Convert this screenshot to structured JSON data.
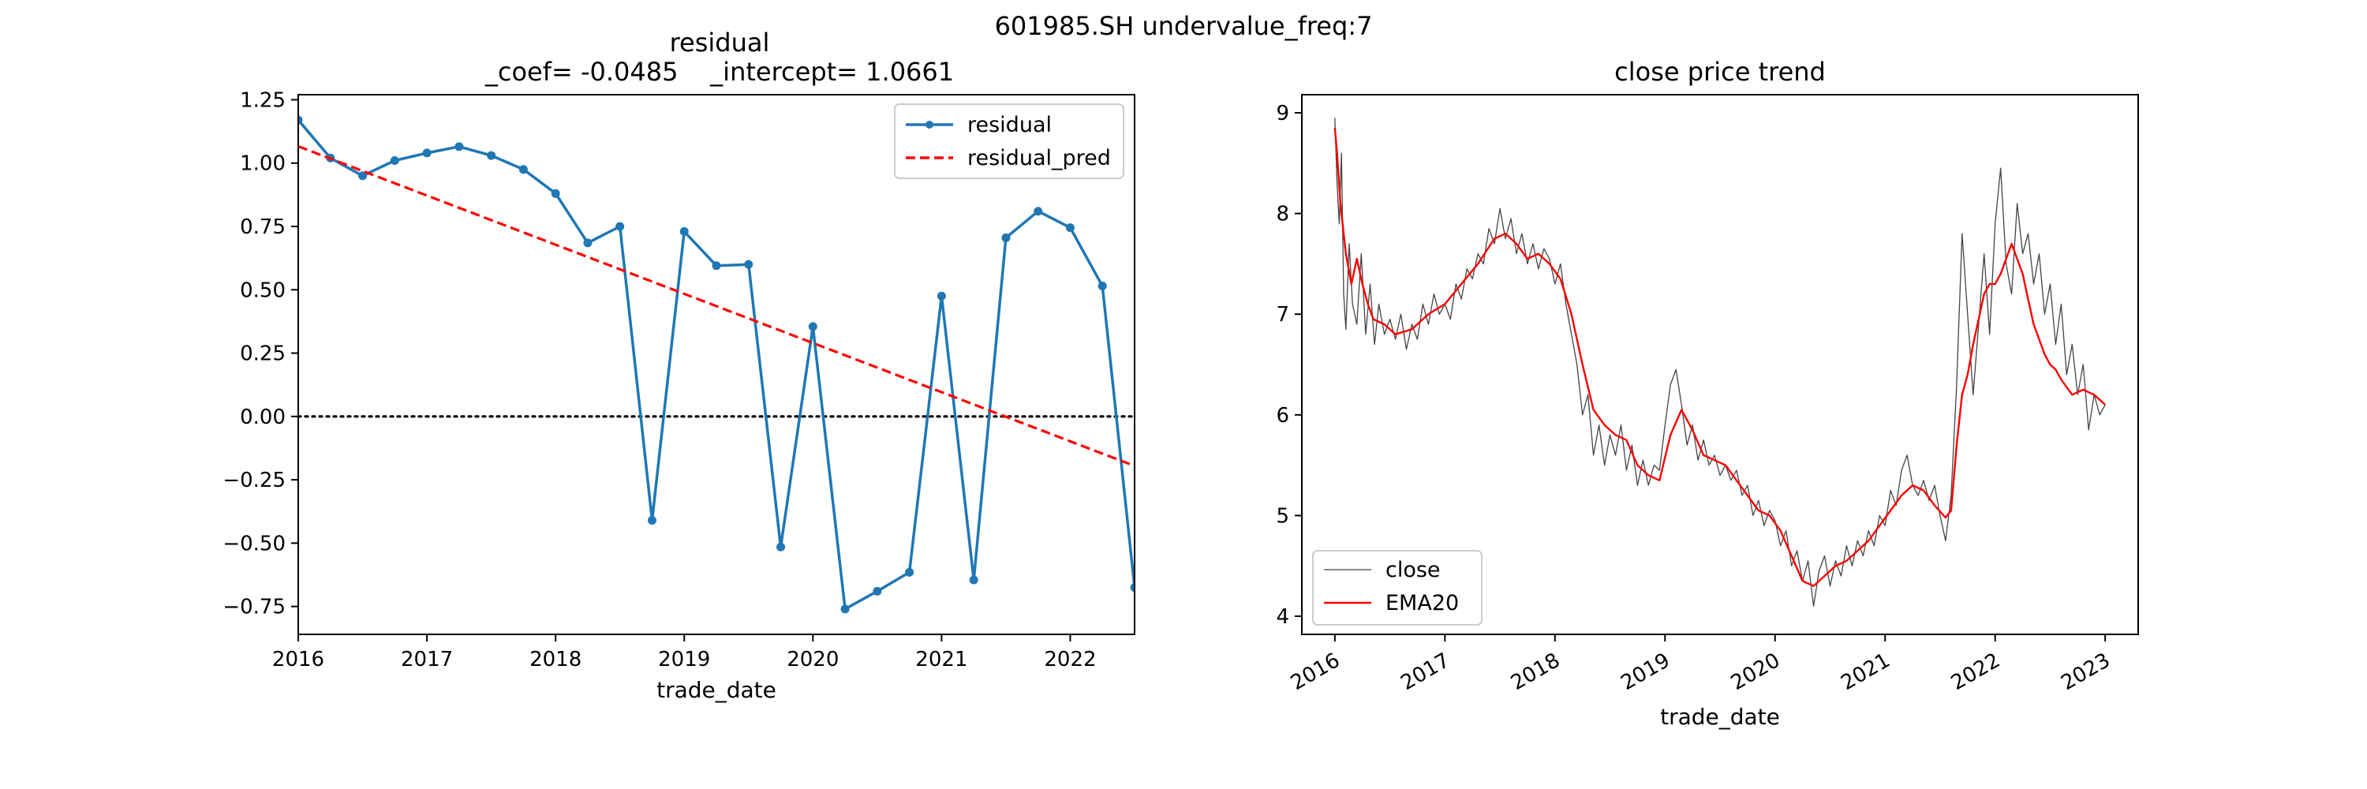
{
  "figure": {
    "suptitle": "601985.SH undervalue_freq:7"
  },
  "chart_data": [
    {
      "type": "line",
      "title_line1": "residual",
      "title_line2": "_coef= -0.0485    _intercept= 1.0661",
      "xlabel": "trade_date",
      "ylabel": "",
      "xlim": [
        2016.0,
        2022.5
      ],
      "ylim": [
        -0.86,
        1.27
      ],
      "x_ticks": [
        2016,
        2017,
        2018,
        2019,
        2020,
        2021,
        2022
      ],
      "y_ticks": [
        -0.75,
        -0.5,
        -0.25,
        0.0,
        0.25,
        0.5,
        0.75,
        1.0,
        1.25
      ],
      "y_tick_labels": [
        "−0.75",
        "−0.50",
        "−0.25",
        "0.00",
        "0.25",
        "0.50",
        "0.75",
        "1.00",
        "1.25"
      ],
      "zero_line": 0,
      "legend_position": "upper right",
      "series": [
        {
          "name": "residual",
          "color": "#1f77b4",
          "style": "solid-marker",
          "x": [
            2016.0,
            2016.25,
            2016.5,
            2016.75,
            2017.0,
            2017.25,
            2017.5,
            2017.75,
            2018.0,
            2018.25,
            2018.5,
            2018.75,
            2019.0,
            2019.25,
            2019.5,
            2019.75,
            2020.0,
            2020.25,
            2020.5,
            2020.75,
            2021.0,
            2021.25,
            2021.5,
            2021.75,
            2022.0,
            2022.25,
            2022.5
          ],
          "values": [
            1.17,
            1.02,
            0.95,
            1.01,
            1.04,
            1.065,
            1.03,
            0.975,
            0.88,
            0.685,
            0.75,
            -0.41,
            0.73,
            0.595,
            0.6,
            -0.515,
            0.355,
            -0.76,
            -0.69,
            -0.615,
            0.475,
            -0.645,
            0.705,
            0.81,
            0.745,
            0.515,
            -0.675
          ]
        },
        {
          "name": "residual_pred",
          "color": "#ff0000",
          "style": "dashed",
          "x": [
            2016.0,
            2022.5
          ],
          "values": [
            1.0661,
            -0.195
          ]
        }
      ]
    },
    {
      "type": "line",
      "title": "close price trend",
      "xlabel": "trade_date",
      "ylabel": "",
      "xlim": [
        2015.7,
        2023.3
      ],
      "ylim": [
        3.82,
        9.18
      ],
      "x_ticks": [
        2016,
        2017,
        2018,
        2019,
        2020,
        2021,
        2022,
        2023
      ],
      "y_ticks": [
        4,
        5,
        6,
        7,
        8,
        9
      ],
      "legend_position": "lower left",
      "series": [
        {
          "name": "close",
          "color": "#444444",
          "x": [
            2016.0,
            2016.02,
            2016.04,
            2016.06,
            2016.08,
            2016.1,
            2016.13,
            2016.16,
            2016.2,
            2016.24,
            2016.28,
            2016.32,
            2016.36,
            2016.4,
            2016.45,
            2016.5,
            2016.55,
            2016.6,
            2016.65,
            2016.7,
            2016.75,
            2016.8,
            2016.85,
            2016.9,
            2016.95,
            2017.0,
            2017.05,
            2017.1,
            2017.15,
            2017.2,
            2017.25,
            2017.3,
            2017.35,
            2017.4,
            2017.45,
            2017.5,
            2017.55,
            2017.6,
            2017.65,
            2017.7,
            2017.75,
            2017.8,
            2017.85,
            2017.9,
            2017.95,
            2018.0,
            2018.05,
            2018.1,
            2018.15,
            2018.2,
            2018.25,
            2018.3,
            2018.35,
            2018.4,
            2018.45,
            2018.5,
            2018.55,
            2018.6,
            2018.65,
            2018.7,
            2018.75,
            2018.8,
            2018.85,
            2018.9,
            2018.95,
            2019.0,
            2019.05,
            2019.1,
            2019.15,
            2019.2,
            2019.25,
            2019.3,
            2019.35,
            2019.4,
            2019.45,
            2019.5,
            2019.55,
            2019.6,
            2019.65,
            2019.7,
            2019.75,
            2019.8,
            2019.85,
            2019.9,
            2019.95,
            2020.0,
            2020.05,
            2020.1,
            2020.15,
            2020.2,
            2020.25,
            2020.3,
            2020.35,
            2020.4,
            2020.45,
            2020.5,
            2020.55,
            2020.6,
            2020.65,
            2020.7,
            2020.75,
            2020.8,
            2020.85,
            2020.9,
            2020.95,
            2021.0,
            2021.05,
            2021.1,
            2021.15,
            2021.2,
            2021.25,
            2021.3,
            2021.35,
            2021.4,
            2021.45,
            2021.5,
            2021.55,
            2021.6,
            2021.65,
            2021.7,
            2021.75,
            2021.8,
            2021.85,
            2021.9,
            2021.95,
            2022.0,
            2022.05,
            2022.1,
            2022.15,
            2022.2,
            2022.25,
            2022.3,
            2022.35,
            2022.4,
            2022.45,
            2022.5,
            2022.55,
            2022.6,
            2022.65,
            2022.7,
            2022.75,
            2022.8,
            2022.85,
            2022.9,
            2022.95,
            2023.0
          ],
          "values": [
            8.95,
            8.3,
            7.9,
            8.6,
            7.2,
            6.85,
            7.7,
            7.1,
            6.9,
            7.6,
            6.8,
            7.3,
            6.7,
            7.1,
            6.8,
            6.95,
            6.75,
            7.0,
            6.65,
            6.9,
            6.75,
            7.1,
            6.9,
            7.2,
            7.0,
            7.1,
            6.95,
            7.3,
            7.15,
            7.45,
            7.35,
            7.6,
            7.5,
            7.85,
            7.7,
            8.05,
            7.75,
            7.95,
            7.6,
            7.8,
            7.5,
            7.7,
            7.45,
            7.65,
            7.55,
            7.3,
            7.5,
            7.1,
            6.8,
            6.5,
            6.0,
            6.2,
            5.6,
            5.9,
            5.5,
            5.8,
            5.6,
            5.9,
            5.45,
            5.7,
            5.3,
            5.55,
            5.3,
            5.5,
            5.45,
            5.9,
            6.3,
            6.45,
            6.1,
            5.7,
            5.9,
            5.55,
            5.75,
            5.5,
            5.6,
            5.4,
            5.5,
            5.35,
            5.45,
            5.2,
            5.3,
            5.0,
            5.15,
            4.9,
            5.05,
            4.95,
            4.7,
            4.85,
            4.5,
            4.65,
            4.35,
            4.55,
            4.1,
            4.45,
            4.6,
            4.3,
            4.55,
            4.4,
            4.7,
            4.5,
            4.75,
            4.6,
            4.85,
            4.7,
            5.0,
            4.9,
            5.25,
            5.1,
            5.45,
            5.6,
            5.3,
            5.2,
            5.35,
            5.15,
            5.3,
            5.0,
            4.75,
            5.2,
            6.3,
            7.8,
            7.0,
            6.2,
            6.9,
            7.6,
            6.8,
            7.9,
            8.45,
            7.5,
            7.2,
            8.1,
            7.6,
            7.8,
            7.3,
            7.6,
            7.0,
            7.3,
            6.7,
            7.1,
            6.4,
            6.7,
            6.2,
            6.5,
            5.85,
            6.2,
            6.0,
            6.1
          ],
          "line_width": "thin"
        },
        {
          "name": "EMA20",
          "color": "#ff0000",
          "x": [
            2016.0,
            2016.02,
            2016.05,
            2016.1,
            2016.15,
            2016.2,
            2016.25,
            2016.3,
            2016.35,
            2016.45,
            2016.55,
            2016.7,
            2016.85,
            2017.0,
            2017.15,
            2017.3,
            2017.45,
            2017.55,
            2017.65,
            2017.75,
            2017.85,
            2017.95,
            2018.05,
            2018.15,
            2018.25,
            2018.35,
            2018.45,
            2018.55,
            2018.65,
            2018.75,
            2018.85,
            2018.95,
            2019.05,
            2019.15,
            2019.25,
            2019.35,
            2019.45,
            2019.55,
            2019.65,
            2019.75,
            2019.85,
            2019.95,
            2020.05,
            2020.15,
            2020.25,
            2020.35,
            2020.45,
            2020.55,
            2020.65,
            2020.75,
            2020.85,
            2020.95,
            2021.05,
            2021.15,
            2021.25,
            2021.35,
            2021.45,
            2021.55,
            2021.6,
            2021.65,
            2021.7,
            2021.75,
            2021.8,
            2021.85,
            2021.9,
            2021.95,
            2022.0,
            2022.05,
            2022.1,
            2022.15,
            2022.2,
            2022.25,
            2022.3,
            2022.35,
            2022.4,
            2022.45,
            2022.5,
            2022.55,
            2022.6,
            2022.7,
            2022.8,
            2022.9,
            2023.0
          ],
          "values": [
            8.85,
            8.6,
            8.1,
            7.6,
            7.3,
            7.55,
            7.3,
            7.1,
            6.95,
            6.9,
            6.8,
            6.85,
            7.0,
            7.1,
            7.3,
            7.5,
            7.75,
            7.8,
            7.7,
            7.55,
            7.6,
            7.5,
            7.35,
            7.0,
            6.5,
            6.05,
            5.9,
            5.8,
            5.75,
            5.5,
            5.4,
            5.35,
            5.8,
            6.05,
            5.85,
            5.6,
            5.55,
            5.5,
            5.35,
            5.2,
            5.05,
            5.0,
            4.85,
            4.6,
            4.35,
            4.3,
            4.4,
            4.5,
            4.55,
            4.65,
            4.75,
            4.9,
            5.05,
            5.2,
            5.3,
            5.25,
            5.1,
            4.98,
            5.05,
            5.7,
            6.2,
            6.4,
            6.7,
            6.95,
            7.2,
            7.3,
            7.3,
            7.4,
            7.55,
            7.7,
            7.55,
            7.4,
            7.15,
            6.9,
            6.75,
            6.6,
            6.5,
            6.45,
            6.35,
            6.2,
            6.25,
            6.2,
            6.1
          ],
          "line_width": "normal"
        }
      ]
    }
  ]
}
